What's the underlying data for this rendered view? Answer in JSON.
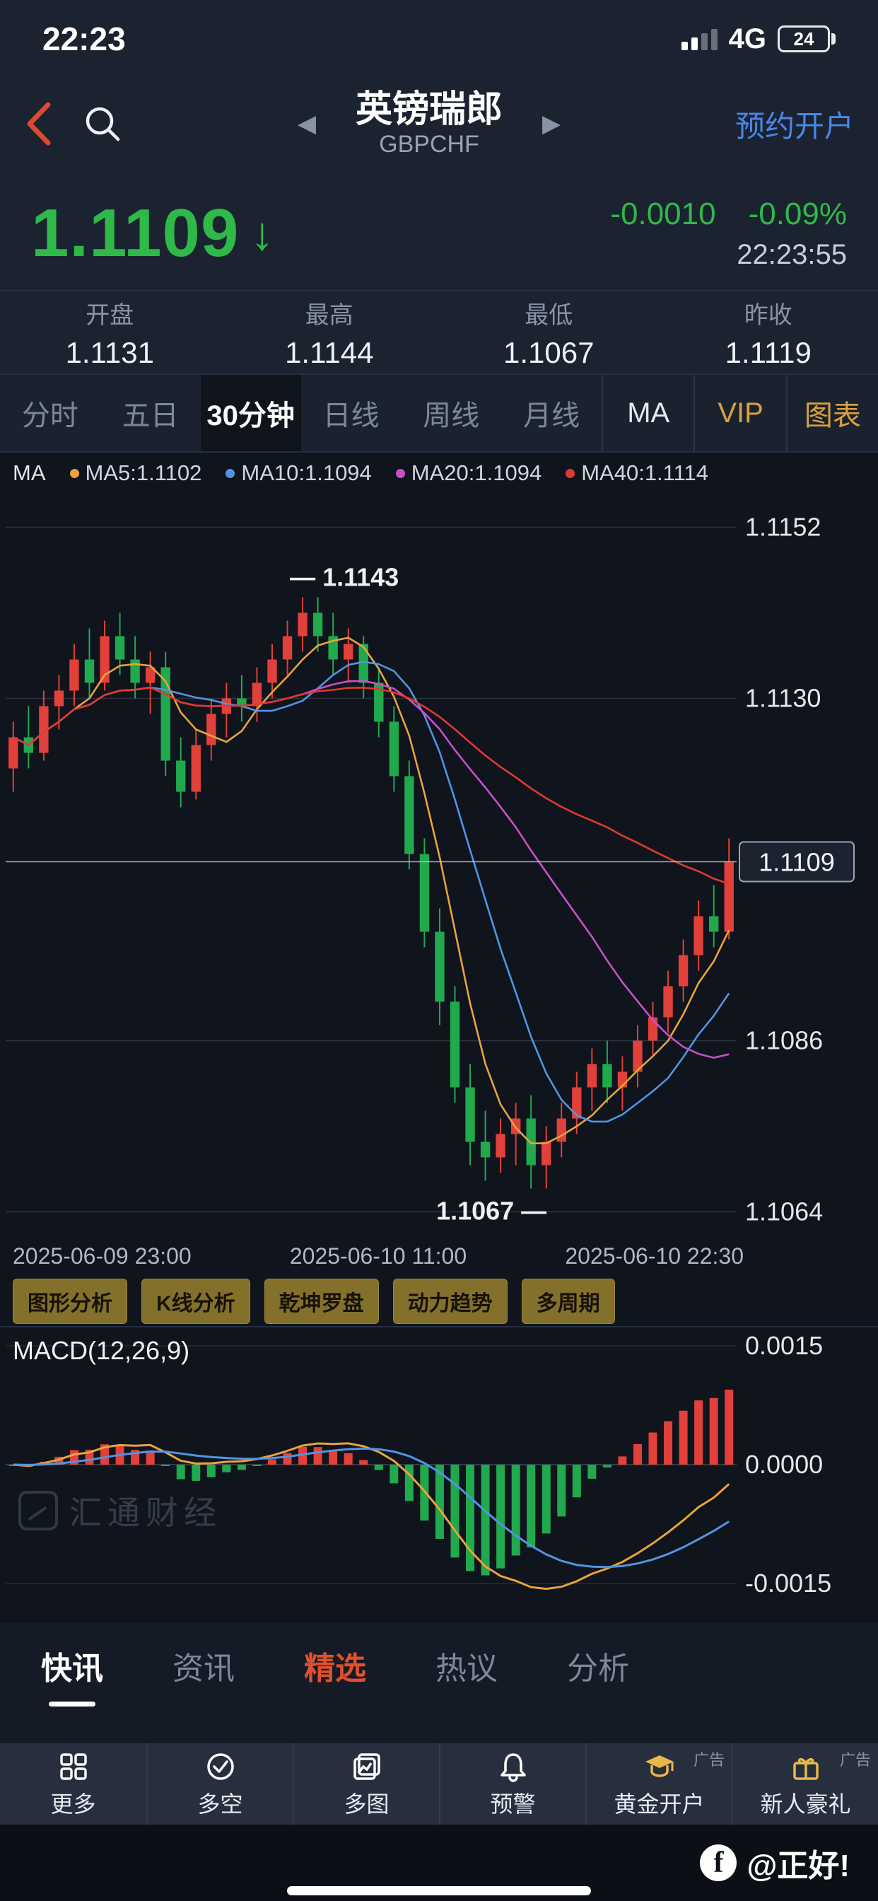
{
  "status_bar": {
    "time": "22:23",
    "network": "4G",
    "battery": "24"
  },
  "header": {
    "title": "英镑瑞郎",
    "symbol": "GBPCHF",
    "open_account": "预约开户"
  },
  "quote": {
    "price": "1.1109",
    "arrow": "↓",
    "change": "-0.0010",
    "change_pct": "-0.09%",
    "time": "22:23:55",
    "stats": [
      {
        "label": "开盘",
        "value": "1.1131"
      },
      {
        "label": "最高",
        "value": "1.1144"
      },
      {
        "label": "最低",
        "value": "1.1067"
      },
      {
        "label": "昨收",
        "value": "1.1119"
      }
    ]
  },
  "period_tabs": {
    "items": [
      "分时",
      "五日",
      "30分钟",
      "日线",
      "周线",
      "月线"
    ],
    "selected": "30分钟",
    "ma": "MA",
    "vip": "VIP",
    "chart": "图表"
  },
  "chart_data": {
    "type": "candlestick",
    "symbol": "GBPCHF",
    "period": "30分钟",
    "ma_label": "MA",
    "ma_legend": [
      {
        "text": "MA5:1.1102",
        "color": "#e8a33d"
      },
      {
        "text": "MA10:1.1094",
        "color": "#5294e2"
      },
      {
        "text": "MA20:1.1094",
        "color": "#c94fc9"
      },
      {
        "text": "MA40:1.1114",
        "color": "#e0392e"
      }
    ],
    "ma_windows": [
      5,
      10,
      20,
      40
    ],
    "y_ticks": [
      "1.1152",
      "1.1130",
      "1.1109",
      "1.1086",
      "1.1064"
    ],
    "y_range": [
      1.1064,
      1.1152
    ],
    "x_labels": [
      "2025-06-09 23:00",
      "2025-06-10 11:00",
      "2025-06-10 22:30"
    ],
    "high_annotation": "1.1143",
    "low_annotation": "1.1067",
    "current_price": "1.1109",
    "colors": {
      "up": "#e2403a",
      "down": "#21a94e",
      "dif": "#e8a33d",
      "dea": "#5294e2"
    },
    "candles": [
      [
        1.1121,
        1.1127,
        1.1118,
        1.1125
      ],
      [
        1.1125,
        1.1129,
        1.1121,
        1.1123
      ],
      [
        1.1123,
        1.1131,
        1.1122,
        1.1129
      ],
      [
        1.1129,
        1.1133,
        1.1126,
        1.1131
      ],
      [
        1.1131,
        1.1137,
        1.1129,
        1.1135
      ],
      [
        1.1135,
        1.1139,
        1.113,
        1.1132
      ],
      [
        1.1132,
        1.114,
        1.1131,
        1.1138
      ],
      [
        1.1138,
        1.1141,
        1.1133,
        1.1135
      ],
      [
        1.1135,
        1.1138,
        1.113,
        1.1132
      ],
      [
        1.1132,
        1.1136,
        1.1128,
        1.1134
      ],
      [
        1.1134,
        1.1136,
        1.112,
        1.1122
      ],
      [
        1.1122,
        1.1125,
        1.1116,
        1.1118
      ],
      [
        1.1118,
        1.1126,
        1.1117,
        1.1124
      ],
      [
        1.1124,
        1.113,
        1.1122,
        1.1128
      ],
      [
        1.1128,
        1.1132,
        1.1125,
        1.113
      ],
      [
        1.113,
        1.1133,
        1.1127,
        1.1129
      ],
      [
        1.1129,
        1.1134,
        1.1127,
        1.1132
      ],
      [
        1.1132,
        1.1137,
        1.113,
        1.1135
      ],
      [
        1.1135,
        1.114,
        1.1133,
        1.1138
      ],
      [
        1.1138,
        1.1143,
        1.1136,
        1.1141
      ],
      [
        1.1141,
        1.1143,
        1.1136,
        1.1138
      ],
      [
        1.1138,
        1.1141,
        1.1133,
        1.1135
      ],
      [
        1.1135,
        1.1139,
        1.1132,
        1.1137
      ],
      [
        1.1137,
        1.1138,
        1.113,
        1.1132
      ],
      [
        1.1132,
        1.1134,
        1.1125,
        1.1127
      ],
      [
        1.1127,
        1.1129,
        1.1118,
        1.112
      ],
      [
        1.112,
        1.1122,
        1.1108,
        1.111
      ],
      [
        1.111,
        1.1112,
        1.1098,
        1.11
      ],
      [
        1.11,
        1.1103,
        1.1088,
        1.1091
      ],
      [
        1.1091,
        1.1093,
        1.1078,
        1.108
      ],
      [
        1.108,
        1.1083,
        1.107,
        1.1073
      ],
      [
        1.1073,
        1.1077,
        1.1068,
        1.1071
      ],
      [
        1.1071,
        1.1076,
        1.1069,
        1.1074
      ],
      [
        1.1074,
        1.1078,
        1.107,
        1.1076
      ],
      [
        1.1076,
        1.1079,
        1.1067,
        1.107
      ],
      [
        1.107,
        1.1075,
        1.1067,
        1.1073
      ],
      [
        1.1073,
        1.1078,
        1.1071,
        1.1076
      ],
      [
        1.1076,
        1.1082,
        1.1074,
        1.108
      ],
      [
        1.108,
        1.1085,
        1.1077,
        1.1083
      ],
      [
        1.1083,
        1.1086,
        1.1078,
        1.108
      ],
      [
        1.108,
        1.1084,
        1.1077,
        1.1082
      ],
      [
        1.1082,
        1.1088,
        1.108,
        1.1086
      ],
      [
        1.1086,
        1.1091,
        1.1084,
        1.1089
      ],
      [
        1.1089,
        1.1095,
        1.1087,
        1.1093
      ],
      [
        1.1093,
        1.1099,
        1.1091,
        1.1097
      ],
      [
        1.1097,
        1.1104,
        1.1095,
        1.1102
      ],
      [
        1.1102,
        1.1106,
        1.1098,
        1.11
      ],
      [
        1.11,
        1.1112,
        1.1099,
        1.1109
      ]
    ]
  },
  "analysis_buttons": [
    "图形分析",
    "K线分析",
    "乾坤罗盘",
    "动力趋势",
    "多周期"
  ],
  "macd": {
    "title": "MACD(12,26,9)",
    "params": [
      12,
      26,
      9
    ],
    "axis": [
      "0.0015",
      "0.0000",
      "-0.0015"
    ],
    "watermark": "汇通财经"
  },
  "news_tabs": {
    "items": [
      "快讯",
      "资讯",
      "精选",
      "热议",
      "分析"
    ],
    "selected": "快讯"
  },
  "bottom_nav": {
    "items": [
      {
        "label": "更多"
      },
      {
        "label": "多空"
      },
      {
        "label": "多图"
      },
      {
        "label": "预警"
      },
      {
        "label": "黄金开户",
        "ad": "广告"
      },
      {
        "label": "新人豪礼",
        "ad": "广告"
      }
    ]
  },
  "footer": {
    "handle": "@正好!"
  }
}
